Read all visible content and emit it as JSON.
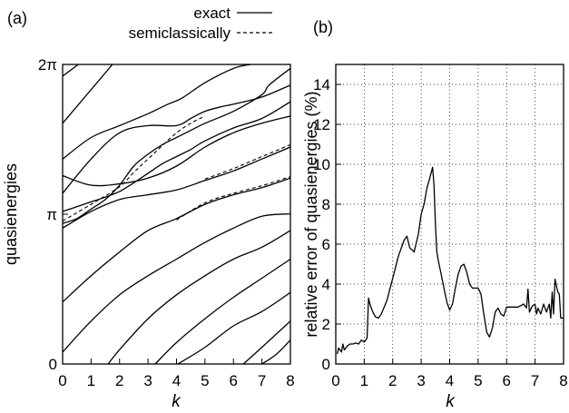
{
  "chart_data": [
    {
      "panel_label": "(a)",
      "type": "line",
      "xlabel": "k",
      "ylabel": "quasienergies",
      "xlim": [
        0,
        8
      ],
      "ylim": [
        0,
        6.2832
      ],
      "xticks": [
        "0",
        "1",
        "2",
        "3",
        "4",
        "5",
        "6",
        "7",
        "8"
      ],
      "yticks": [
        {
          "label": "0",
          "value": 0
        },
        {
          "label": "π",
          "value": 3.1416
        },
        {
          "label": "2π",
          "value": 6.2832
        }
      ],
      "grid": false,
      "legend": {
        "position": "top",
        "entries": [
          {
            "label": "exact",
            "style": "solid"
          },
          {
            "label": "semiclassically",
            "style": "dashed"
          }
        ]
      },
      "series": [
        {
          "style": "solid",
          "x": [
            0,
            1.75
          ],
          "y": [
            5.05,
            6.2832
          ]
        },
        {
          "style": "solid",
          "x": [
            0,
            0.55
          ],
          "y": [
            6.04,
            6.2832
          ]
        },
        {
          "style": "solid",
          "x": [
            0,
            1,
            2,
            3,
            3.7,
            4.2,
            5,
            6,
            6.6
          ],
          "y": [
            4.3,
            4.75,
            5.0,
            5.25,
            5.45,
            5.58,
            5.9,
            6.2,
            6.2832
          ]
        },
        {
          "style": "solid",
          "x": [
            0,
            1,
            2,
            3,
            4,
            4.5,
            5,
            5.6,
            6,
            7,
            8
          ],
          "y": [
            3.58,
            4.3,
            4.85,
            5.0,
            5.0,
            5.15,
            5.3,
            5.4,
            5.45,
            5.6,
            5.85
          ]
        },
        {
          "style": "solid",
          "x": [
            0,
            1,
            2,
            3,
            4,
            5,
            6,
            7,
            8
          ],
          "y": [
            3.95,
            3.75,
            3.78,
            3.9,
            4.15,
            4.55,
            4.85,
            5.05,
            5.2
          ]
        },
        {
          "style": "solid",
          "x": [
            0,
            0.5,
            1,
            1.5,
            2,
            2.5,
            3,
            3.5,
            4,
            4.5,
            5,
            6,
            7,
            7.25,
            8
          ],
          "y": [
            2.95,
            3.05,
            3.25,
            3.45,
            3.75,
            4.15,
            4.4,
            4.6,
            4.75,
            4.9,
            5.05,
            5.3,
            5.65,
            5.85,
            6.2
          ]
        },
        {
          "style": "solid",
          "x": [
            0,
            0.5,
            1,
            1.5,
            2,
            2.5,
            3,
            3.5,
            4,
            4.5,
            5,
            6,
            7,
            8
          ],
          "y": [
            3.2,
            3.3,
            3.4,
            3.5,
            3.62,
            3.8,
            4.0,
            4.2,
            4.35,
            4.5,
            4.68,
            4.95,
            5.15,
            5.5
          ]
        },
        {
          "style": "solid",
          "x": [
            0,
            1,
            2,
            3,
            4,
            5,
            6,
            7,
            8
          ],
          "y": [
            2.85,
            3.2,
            3.45,
            3.55,
            3.65,
            3.85,
            4.05,
            4.3,
            4.55
          ]
        },
        {
          "style": "solid",
          "x": [
            0,
            1,
            2,
            3,
            4,
            5,
            6,
            7,
            8
          ],
          "y": [
            1.3,
            1.85,
            2.35,
            2.8,
            3.05,
            3.35,
            3.55,
            3.7,
            3.9
          ]
        },
        {
          "style": "solid",
          "x": [
            0,
            1,
            2,
            3,
            4,
            5,
            6,
            7,
            8
          ],
          "y": [
            0.25,
            0.9,
            1.45,
            1.85,
            2.2,
            2.55,
            2.85,
            3.1,
            3.15
          ]
        },
        {
          "style": "solid",
          "x": [
            1.6,
            2,
            3,
            4,
            5,
            6,
            7,
            8
          ],
          "y": [
            0,
            0.3,
            0.95,
            1.45,
            1.85,
            2.2,
            2.45,
            2.8
          ]
        },
        {
          "style": "solid",
          "x": [
            3.25,
            4,
            5,
            6,
            7,
            8
          ],
          "y": [
            0,
            0.45,
            0.95,
            1.4,
            1.8,
            2.2
          ]
        },
        {
          "style": "solid",
          "x": [
            4.05,
            5,
            6,
            7,
            8
          ],
          "y": [
            0,
            0.35,
            0.8,
            1.1,
            1.5
          ]
        },
        {
          "style": "solid",
          "x": [
            6.35,
            7,
            8
          ],
          "y": [
            0,
            0.35,
            0.9
          ]
        },
        {
          "style": "solid",
          "x": [
            7.0,
            7.5,
            8
          ],
          "y": [
            0,
            0.2,
            0.5
          ]
        },
        {
          "style": "dashed",
          "x": [
            0,
            1,
            2,
            2.5,
            3,
            3.5,
            4,
            4.5,
            5
          ],
          "y": [
            3.0,
            3.35,
            3.72,
            4.02,
            4.3,
            4.58,
            4.85,
            5.05,
            5.2
          ]
        },
        {
          "style": "dashed",
          "x": [
            5,
            6,
            7,
            8
          ],
          "y": [
            3.88,
            4.1,
            4.35,
            4.6
          ]
        },
        {
          "style": "dashed",
          "x": [
            4,
            5,
            6,
            7,
            8
          ],
          "y": [
            3.02,
            3.38,
            3.58,
            3.74,
            3.93
          ]
        }
      ]
    },
    {
      "panel_label": "(b)",
      "type": "line",
      "xlabel": "k",
      "ylabel": "relative error of quasienergies (%)",
      "xlim": [
        0,
        8
      ],
      "ylim": [
        0,
        15
      ],
      "xticks": [
        "0",
        "1",
        "2",
        "3",
        "4",
        "5",
        "6",
        "7",
        "8"
      ],
      "yticks": [
        "0",
        "2",
        "4",
        "6",
        "8",
        "10",
        "12",
        "14"
      ],
      "grid": true,
      "series": [
        {
          "style": "solid",
          "x": [
            0.05,
            0.1,
            0.2,
            0.25,
            0.3,
            0.4,
            0.5,
            0.6,
            0.7,
            0.8,
            0.9,
            1.0,
            1.1,
            1.15,
            1.2,
            1.3,
            1.4,
            1.5,
            1.6,
            1.8,
            2.0,
            2.2,
            2.4,
            2.5,
            2.6,
            2.7,
            2.75,
            2.9,
            3.0,
            3.1,
            3.2,
            3.3,
            3.4,
            3.45,
            3.5,
            3.55,
            3.6,
            3.7,
            3.8,
            3.9,
            4.0,
            4.1,
            4.2,
            4.3,
            4.4,
            4.5,
            4.6,
            4.7,
            4.8,
            5.0,
            5.1,
            5.2,
            5.3,
            5.4,
            5.5,
            5.6,
            5.7,
            5.8,
            5.9,
            6.0,
            6.2,
            6.4,
            6.6,
            6.7,
            6.75,
            6.8,
            6.9,
            7.0,
            7.05,
            7.1,
            7.2,
            7.3,
            7.4,
            7.5,
            7.55,
            7.6,
            7.65,
            7.7,
            7.75,
            7.8,
            7.85,
            7.9,
            8.0
          ],
          "y": [
            0.5,
            0.8,
            0.6,
            1.0,
            0.7,
            0.9,
            1.0,
            1.0,
            1.05,
            1.0,
            1.2,
            1.1,
            1.3,
            3.3,
            3.0,
            2.6,
            2.35,
            2.3,
            2.5,
            3.2,
            4.3,
            5.4,
            6.2,
            6.4,
            5.8,
            5.7,
            5.6,
            6.5,
            7.5,
            8.0,
            8.8,
            9.3,
            9.85,
            9.0,
            7.0,
            5.6,
            5.2,
            4.5,
            3.8,
            3.1,
            2.7,
            3.0,
            3.8,
            4.5,
            4.9,
            5.0,
            4.6,
            4.0,
            3.8,
            3.8,
            3.5,
            2.5,
            1.6,
            1.35,
            1.8,
            2.6,
            2.8,
            2.5,
            2.4,
            2.85,
            2.85,
            2.85,
            3.0,
            2.8,
            3.75,
            2.6,
            2.9,
            3.0,
            2.5,
            2.8,
            2.5,
            3.0,
            2.6,
            3.0,
            2.3,
            3.6,
            2.5,
            4.25,
            3.9,
            3.6,
            3.5,
            2.3,
            2.3
          ]
        }
      ]
    }
  ]
}
